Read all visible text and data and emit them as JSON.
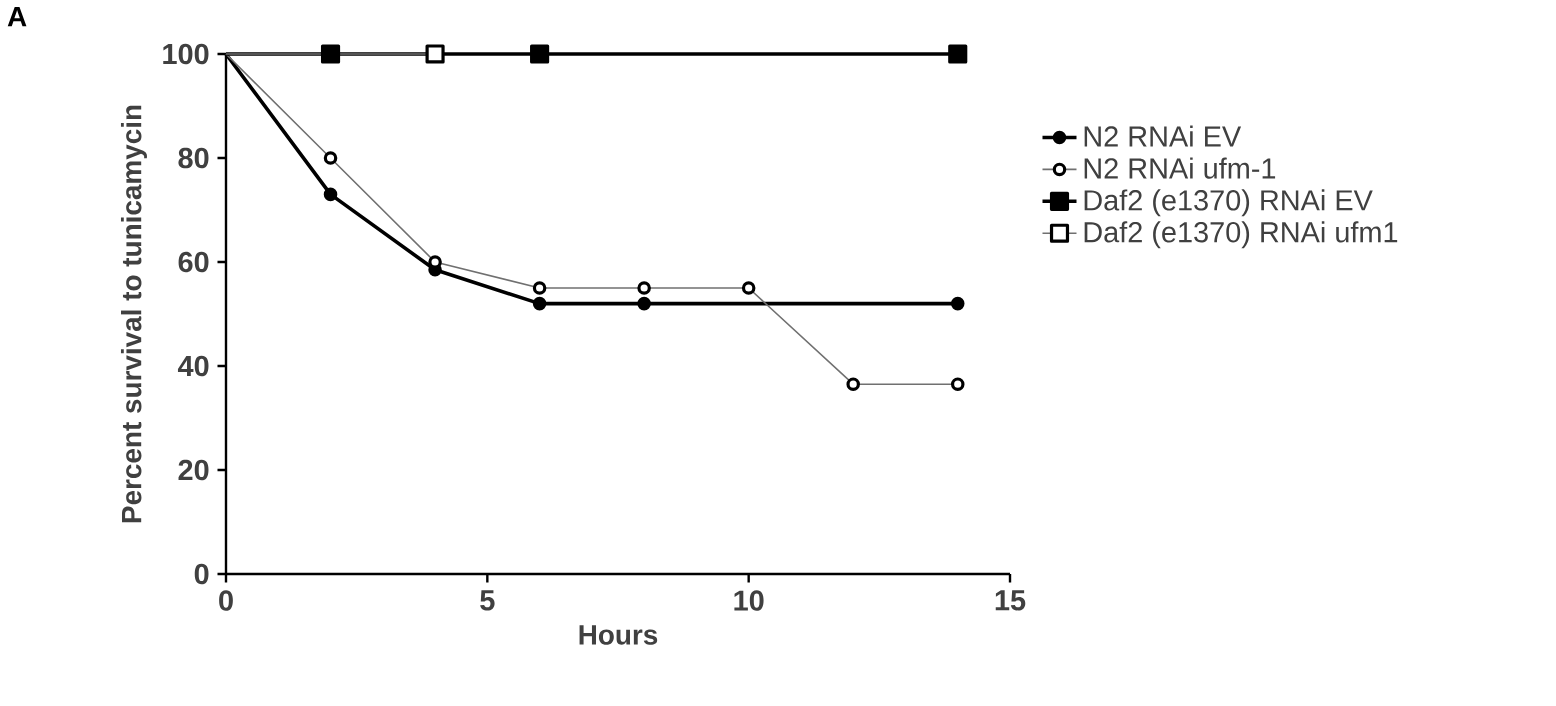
{
  "chart_data": {
    "type": "line",
    "xlabel": "Hours",
    "ylabel": "Percent survival to tunicamycin",
    "annotations": [
      "A"
    ],
    "xlim": [
      0,
      15
    ],
    "xticks": [
      0,
      5,
      10,
      15
    ],
    "ylim": [
      0,
      100
    ],
    "yticks": [
      0,
      20,
      40,
      60,
      80,
      100
    ],
    "grid": false,
    "legend": "right",
    "series": [
      {
        "name": "N2 RNAi EV",
        "color": "#000000",
        "marker": "circle",
        "x": [
          0,
          2,
          4,
          6,
          8,
          14
        ],
        "values": [
          100,
          73,
          58.5,
          52,
          52,
          52
        ]
      },
      {
        "name": "N2 RNAi ufm-1",
        "color": "#707070",
        "marker": "circle",
        "x": [
          0,
          2,
          4,
          6,
          8,
          10,
          12,
          14
        ],
        "values": [
          100,
          80,
          60,
          55,
          55,
          55,
          36.5,
          36.5
        ]
      },
      {
        "name": "Daf2 (e1370) RNAi EV",
        "color": "#000000",
        "marker": "square",
        "x": [
          0,
          2,
          6,
          14
        ],
        "values": [
          100,
          100,
          100,
          100
        ]
      },
      {
        "name": "Daf2 (e1370) RNAi ufm1",
        "color": "#707070",
        "marker": "square",
        "x": [
          0,
          4
        ],
        "values": [
          100,
          100
        ]
      }
    ]
  }
}
